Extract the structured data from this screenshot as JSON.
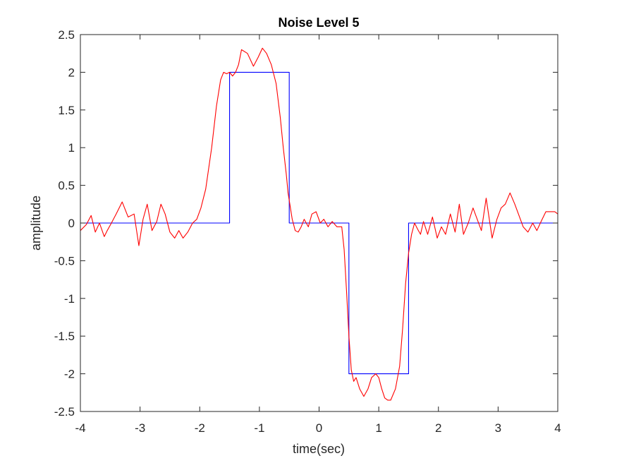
{
  "chart_data": {
    "type": "line",
    "title": "Noise Level 5",
    "xlabel": "time(sec)",
    "ylabel": "amplitude",
    "xlim": [
      -4,
      4
    ],
    "ylim": [
      -2.5,
      2.5
    ],
    "x_ticks": [
      -4,
      -3,
      -2,
      -1,
      0,
      1,
      2,
      3,
      4
    ],
    "x_tick_labels": [
      "-4",
      "-3",
      "-2",
      "-1",
      "0",
      "1",
      "2",
      "3",
      "4"
    ],
    "y_ticks": [
      -2.5,
      -2,
      -1.5,
      -1,
      -0.5,
      0,
      0.5,
      1,
      1.5,
      2,
      2.5
    ],
    "y_tick_labels": [
      "-2.5",
      "-2",
      "-1.5",
      "-1",
      "-0.5",
      "0",
      "0.5",
      "1",
      "1.5",
      "2",
      "2.5"
    ],
    "grid": false,
    "legend": "none",
    "series": [
      {
        "color": "#0000ff",
        "x": [
          -4,
          -1.5,
          -1.5,
          -0.5,
          -0.5,
          0.5,
          0.5,
          1.5,
          1.5,
          4
        ],
        "y": [
          0,
          0,
          2,
          2,
          0,
          0,
          -2,
          -2,
          0,
          0
        ]
      },
      {
        "color": "#ff0000",
        "x": [
          -4.0,
          -3.9,
          -3.82,
          -3.75,
          -3.68,
          -3.6,
          -3.55,
          -3.48,
          -3.4,
          -3.3,
          -3.2,
          -3.1,
          -3.02,
          -2.95,
          -2.88,
          -2.8,
          -2.72,
          -2.65,
          -2.58,
          -2.5,
          -2.42,
          -2.35,
          -2.28,
          -2.2,
          -2.12,
          -2.05,
          -1.98,
          -1.9,
          -1.8,
          -1.72,
          -1.65,
          -1.6,
          -1.55,
          -1.5,
          -1.45,
          -1.4,
          -1.35,
          -1.3,
          -1.2,
          -1.1,
          -1.02,
          -0.95,
          -0.88,
          -0.8,
          -0.72,
          -0.65,
          -0.6,
          -0.55,
          -0.52,
          -0.48,
          -0.45,
          -0.4,
          -0.35,
          -0.3,
          -0.25,
          -0.18,
          -0.12,
          -0.05,
          0.02,
          0.08,
          0.15,
          0.22,
          0.3,
          0.38,
          0.42,
          0.46,
          0.5,
          0.54,
          0.58,
          0.62,
          0.68,
          0.75,
          0.82,
          0.88,
          0.95,
          1.0,
          1.05,
          1.1,
          1.15,
          1.2,
          1.28,
          1.35,
          1.4,
          1.45,
          1.5,
          1.55,
          1.6,
          1.65,
          1.7,
          1.75,
          1.82,
          1.9,
          1.98,
          2.05,
          2.12,
          2.2,
          2.28,
          2.35,
          2.42,
          2.5,
          2.58,
          2.65,
          2.72,
          2.8,
          2.9,
          2.98,
          3.05,
          3.12,
          3.2,
          3.28,
          3.35,
          3.42,
          3.5,
          3.58,
          3.65,
          3.72,
          3.8,
          3.88,
          3.95,
          4.0
        ],
        "y": [
          -0.1,
          -0.02,
          0.1,
          -0.12,
          0.0,
          -0.18,
          -0.1,
          0.0,
          0.12,
          0.28,
          0.08,
          0.12,
          -0.3,
          0.05,
          0.25,
          -0.1,
          0.02,
          0.25,
          0.12,
          -0.12,
          -0.2,
          -0.1,
          -0.2,
          -0.12,
          0.0,
          0.05,
          0.2,
          0.45,
          1.0,
          1.55,
          1.9,
          2.0,
          1.98,
          2.0,
          1.95,
          2.0,
          2.1,
          2.3,
          2.25,
          2.08,
          2.2,
          2.32,
          2.25,
          2.1,
          1.85,
          1.4,
          1.0,
          0.65,
          0.4,
          0.2,
          0.05,
          -0.1,
          -0.12,
          -0.05,
          0.05,
          -0.05,
          0.12,
          0.15,
          0.0,
          0.05,
          -0.05,
          0.02,
          -0.05,
          -0.05,
          -0.35,
          -0.9,
          -1.5,
          -1.95,
          -2.1,
          -2.05,
          -2.2,
          -2.3,
          -2.2,
          -2.05,
          -2.0,
          -2.05,
          -2.2,
          -2.32,
          -2.35,
          -2.35,
          -2.2,
          -1.9,
          -1.4,
          -0.8,
          -0.4,
          -0.15,
          0.0,
          -0.08,
          -0.15,
          0.02,
          -0.15,
          0.08,
          -0.2,
          -0.05,
          -0.15,
          0.12,
          -0.12,
          0.25,
          -0.15,
          0.0,
          0.2,
          0.05,
          -0.1,
          0.33,
          -0.2,
          0.05,
          0.2,
          0.25,
          0.4,
          0.25,
          0.1,
          -0.05,
          -0.12,
          0.0,
          -0.1,
          0.02,
          0.15,
          0.15,
          0.15,
          0.12
        ]
      }
    ]
  }
}
